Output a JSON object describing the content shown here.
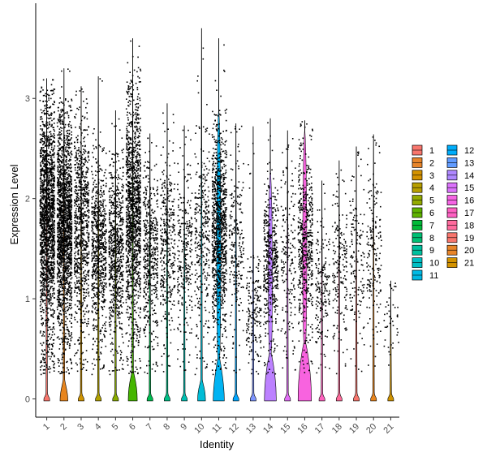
{
  "chart_data": {
    "type": "violin",
    "xlabel": "Identity",
    "ylabel": "Expression Level",
    "yticks": [
      0,
      1,
      2,
      3
    ],
    "ylim": [
      -0.15,
      3.95
    ],
    "categories": [
      "1",
      "2",
      "3",
      "4",
      "5",
      "6",
      "7",
      "8",
      "9",
      "10",
      "11",
      "12",
      "13",
      "14",
      "15",
      "16",
      "17",
      "18",
      "19",
      "20",
      "21"
    ],
    "colors": [
      "#F8766D",
      "#E7851E",
      "#D09400",
      "#B2A100",
      "#89AC00",
      "#45B500",
      "#00BC51",
      "#00C087",
      "#00C0B2",
      "#00BCD6",
      "#00B3F2",
      "#00A6FF",
      "#7F96FF",
      "#BC81FF",
      "#E26EF7",
      "#F863DF",
      "#FF62BF",
      "#FF6A9A",
      "#F8766D",
      "#E7851E",
      "#D09400"
    ],
    "legend_colors": [
      "#F8766D",
      "#E8852A",
      "#D39200",
      "#B79F00",
      "#93AA00",
      "#5EB300",
      "#00BA38",
      "#00BF74",
      "#00C19F",
      "#00BFC4",
      "#00B9E3",
      "#00ADFA",
      "#619CFF",
      "#AE87FF",
      "#DB72FB",
      "#F564E3",
      "#FF61C3",
      "#FF6B9D",
      "#F8766D",
      "#E8852A",
      "#D39200"
    ],
    "series": [
      {
        "name": "1",
        "max": 3.2,
        "point_top": 3.1,
        "nonzero_frac": 0.92,
        "density": 1.0,
        "violin_peak": 0.05,
        "violin_height": 0.05
      },
      {
        "name": "2",
        "max": 3.3,
        "point_top": 3.0,
        "nonzero_frac": 0.9,
        "density": 1.0,
        "violin_peak": 0.15,
        "violin_height": 0.18
      },
      {
        "name": "3",
        "max": 3.12,
        "point_top": 3.0,
        "nonzero_frac": 0.5,
        "density": 0.45,
        "violin_peak": 0.05,
        "violin_height": 0.05
      },
      {
        "name": "4",
        "max": 3.22,
        "point_top": 2.55,
        "nonzero_frac": 0.45,
        "density": 0.4,
        "violin_peak": 0.05,
        "violin_height": 0.05
      },
      {
        "name": "5",
        "max": 2.88,
        "point_top": 2.5,
        "nonzero_frac": 0.45,
        "density": 0.4,
        "violin_peak": 0.05,
        "violin_height": 0.05
      },
      {
        "name": "6",
        "max": 3.6,
        "point_top": 3.3,
        "nonzero_frac": 0.6,
        "density": 0.75,
        "violin_peak": 0.3,
        "violin_height": 0.26
      },
      {
        "name": "7",
        "max": 2.65,
        "point_top": 2.4,
        "nonzero_frac": 0.3,
        "density": 0.28,
        "violin_peak": 0.05,
        "violin_height": 0.05
      },
      {
        "name": "8",
        "max": 2.95,
        "point_top": 2.6,
        "nonzero_frac": 0.2,
        "density": 0.2,
        "violin_peak": 0.05,
        "violin_height": 0.05
      },
      {
        "name": "9",
        "max": 2.73,
        "point_top": 2.5,
        "nonzero_frac": 0.15,
        "density": 0.15,
        "violin_peak": 0.05,
        "violin_height": 0.05
      },
      {
        "name": "10",
        "max": 3.7,
        "point_top": 2.75,
        "nonzero_frac": 0.15,
        "density": 0.18,
        "violin_peak": 0.2,
        "violin_height": 0.18
      },
      {
        "name": "11",
        "max": 3.6,
        "point_top": 2.9,
        "nonzero_frac": 0.35,
        "density": 0.55,
        "violin_peak": 0.3,
        "violin_height": 0.4
      },
      {
        "name": "12",
        "max": 2.75,
        "point_top": 2.6,
        "nonzero_frac": 0.12,
        "density": 0.12,
        "violin_peak": 0.05,
        "violin_height": 0.05
      },
      {
        "name": "13",
        "max": 2.72,
        "point_top": 1.5,
        "nonzero_frac": 0.1,
        "density": 0.1,
        "violin_peak": 0.05,
        "violin_height": 0.05
      },
      {
        "name": "14",
        "max": 2.8,
        "point_top": 2.3,
        "nonzero_frac": 0.2,
        "density": 0.25,
        "violin_peak": 0.45,
        "violin_height": 0.45
      },
      {
        "name": "15",
        "max": 2.68,
        "point_top": 2.4,
        "nonzero_frac": 0.1,
        "density": 0.1,
        "violin_peak": 0.05,
        "violin_height": 0.05
      },
      {
        "name": "16",
        "max": 2.78,
        "point_top": 2.7,
        "nonzero_frac": 0.25,
        "density": 0.3,
        "violin_peak": 0.55,
        "violin_height": 0.55
      },
      {
        "name": "17",
        "max": 2.18,
        "point_top": 1.8,
        "nonzero_frac": 0.1,
        "density": 0.1,
        "violin_peak": 0.05,
        "violin_height": 0.05
      },
      {
        "name": "18",
        "max": 2.38,
        "point_top": 2.1,
        "nonzero_frac": 0.1,
        "density": 0.1,
        "violin_peak": 0.05,
        "violin_height": 0.05
      },
      {
        "name": "19",
        "max": 2.52,
        "point_top": 2.3,
        "nonzero_frac": 0.08,
        "density": 0.08,
        "violin_peak": 0.05,
        "violin_height": 0.05
      },
      {
        "name": "20",
        "max": 2.64,
        "point_top": 2.5,
        "nonzero_frac": 0.1,
        "density": 0.1,
        "violin_peak": 0.05,
        "violin_height": 0.05
      },
      {
        "name": "21",
        "max": 1.18,
        "point_top": 1.1,
        "nonzero_frac": 0.02,
        "density": 0.02,
        "violin_peak": 0.05,
        "violin_height": 0.05
      }
    ]
  }
}
